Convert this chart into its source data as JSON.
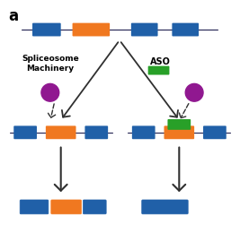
{
  "background_color": "#ffffff",
  "blue_color": "#2060a8",
  "orange_color": "#f07820",
  "green_color": "#28a028",
  "purple_color": "#901890",
  "line_color": "#202050",
  "arrow_color": "#303030",
  "text_color": "#000000",
  "label_spliceosome": "Spliceosome\nMachinery",
  "label_aso": "ASO",
  "panel_label": "a"
}
